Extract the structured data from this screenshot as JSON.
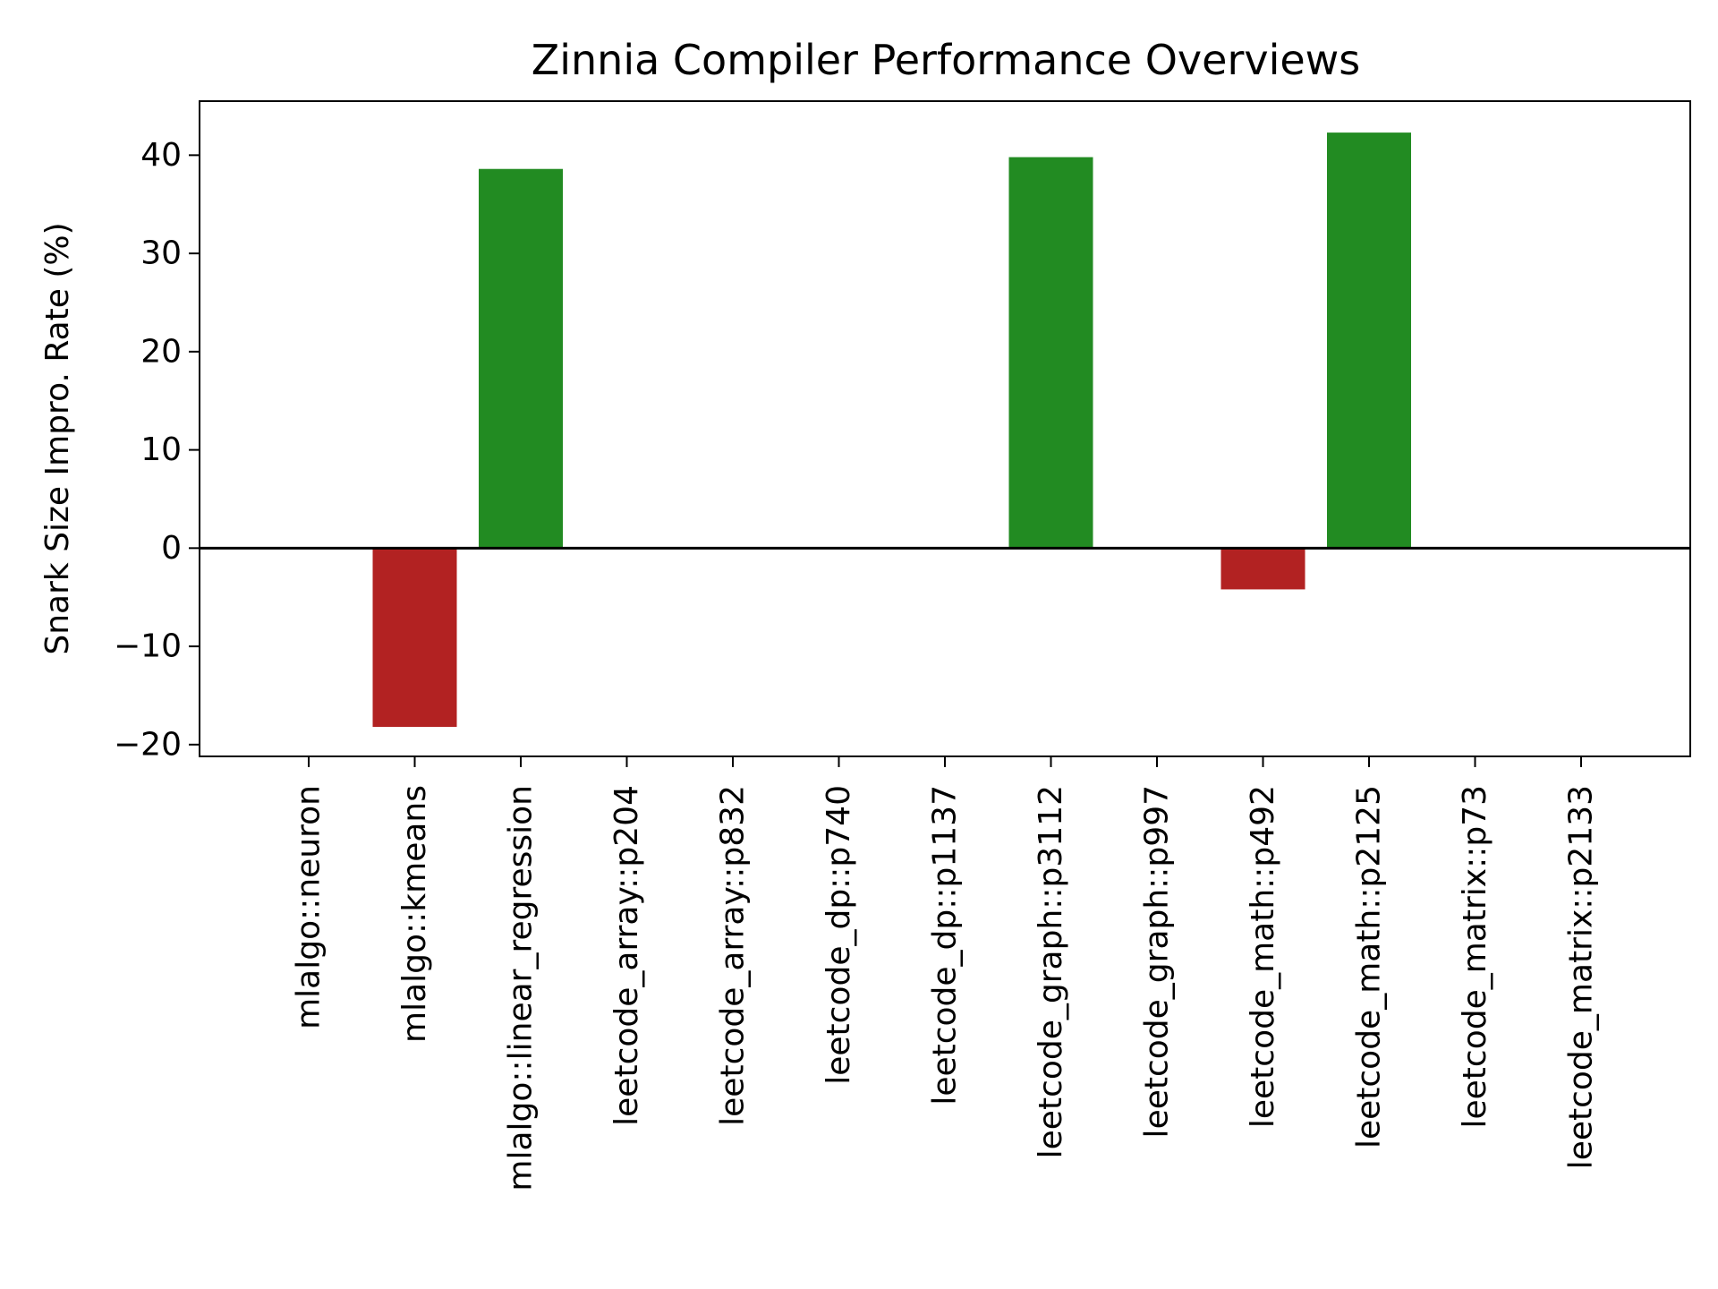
{
  "chart_data": {
    "type": "bar",
    "title": "Zinnia Compiler Performance Overviews",
    "xlabel": "",
    "ylabel": "Snark Size Impro. Rate (%)",
    "ylim": [
      -21.2,
      45.5
    ],
    "yticks": [
      -20,
      -10,
      0,
      10,
      20,
      30,
      40
    ],
    "ytick_labels": [
      "−20",
      "−10",
      "0",
      "10",
      "20",
      "30",
      "40"
    ],
    "categories": [
      "mlalgo::neuron",
      "mlalgo::kmeans",
      "mlalgo::linear_regression",
      "leetcode_array::p204",
      "leetcode_array::p832",
      "leetcode_dp::p740",
      "leetcode_dp::p1137",
      "leetcode_graph::p3112",
      "leetcode_graph::p997",
      "leetcode_math::p492",
      "leetcode_math::p2125",
      "leetcode_matrix::p73",
      "leetcode_matrix::p2133"
    ],
    "values": [
      0,
      -18.2,
      38.6,
      0,
      0,
      0,
      0,
      39.8,
      0,
      -4.2,
      42.3,
      0,
      0
    ],
    "grid": false,
    "zero_line": true,
    "colors": {
      "positive": "#228b22",
      "negative": "#b22222",
      "axis": "#000000"
    }
  }
}
